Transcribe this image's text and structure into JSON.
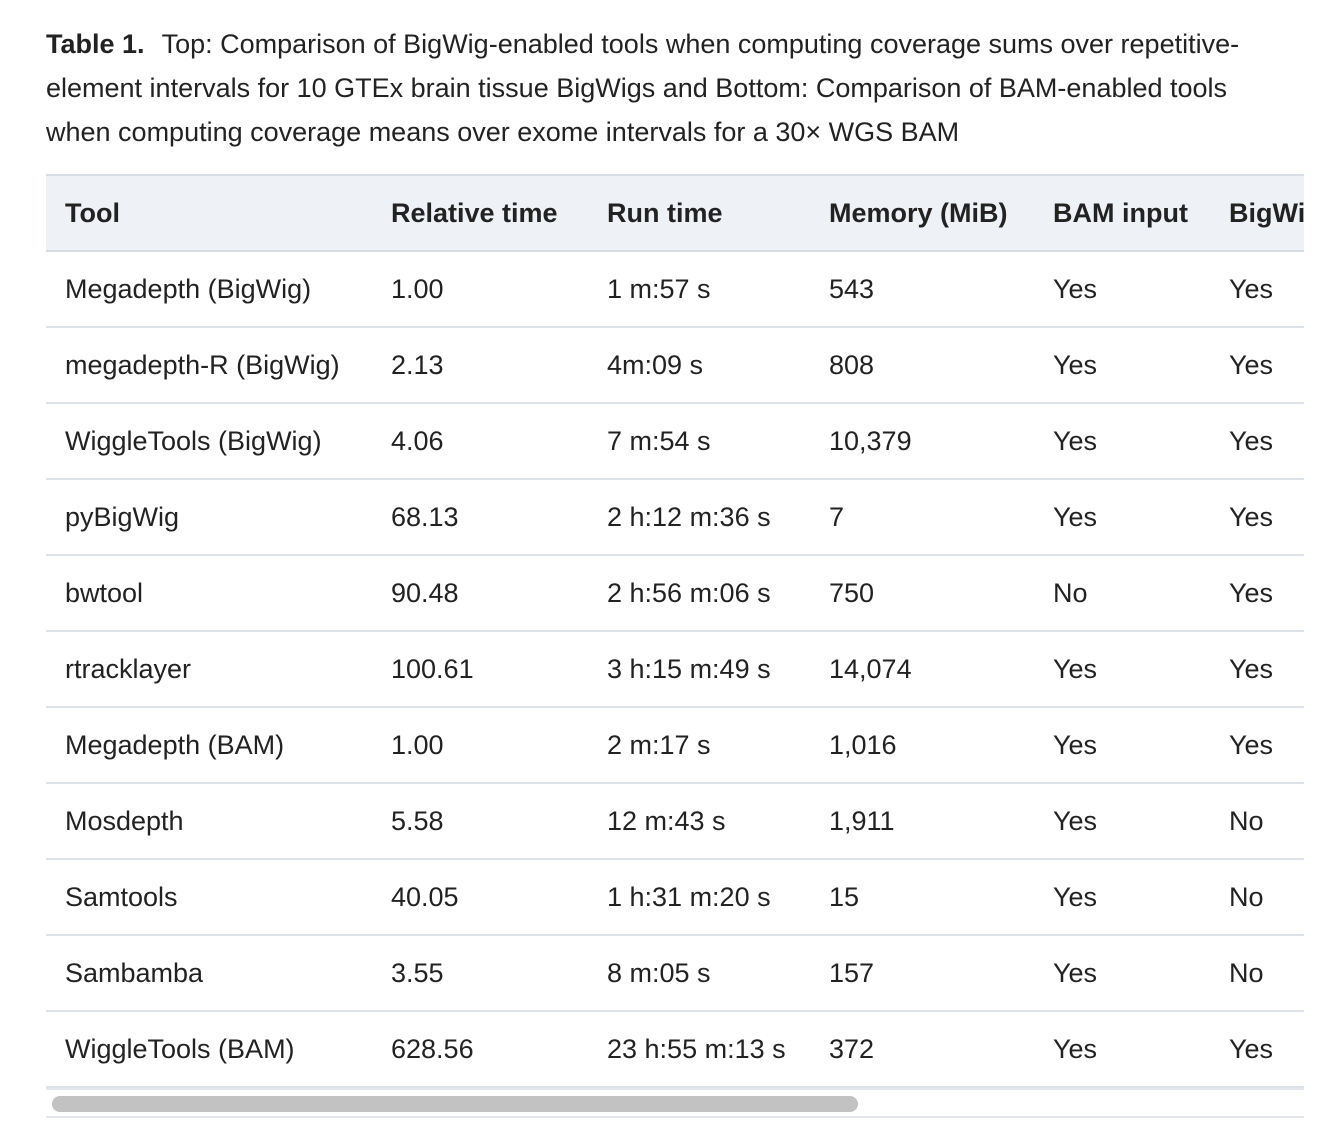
{
  "caption": {
    "label": "Table 1.",
    "text": "Top: Comparison of BigWig-enabled tools when computing coverage sums over repetitive-element intervals for 10 GTEx brain tissue BigWigs and Bottom: Comparison of BAM-enabled tools when computing coverage means over exome intervals for a 30× WGS BAM"
  },
  "table": {
    "headers": [
      "Tool",
      "Relative time",
      "Run time",
      "Memory (MiB)",
      "BAM input",
      "BigWi"
    ],
    "rows": [
      [
        "Megadepth (BigWig)",
        "1.00",
        "1 m:57 s",
        "543",
        "Yes",
        "Yes"
      ],
      [
        "megadepth-R (BigWig)",
        "2.13",
        "4m:09 s",
        "808",
        "Yes",
        "Yes"
      ],
      [
        "WiggleTools (BigWig)",
        "4.06",
        "7 m:54 s",
        "10,379",
        "Yes",
        "Yes"
      ],
      [
        "pyBigWig",
        "68.13",
        "2 h:12 m:36 s",
        "7",
        "Yes",
        "Yes"
      ],
      [
        "bwtool",
        "90.48",
        "2 h:56 m:06 s",
        "750",
        "No",
        "Yes"
      ],
      [
        "rtracklayer",
        "100.61",
        "3 h:15 m:49 s",
        "14,074",
        "Yes",
        "Yes"
      ],
      [
        "Megadepth (BAM)",
        "1.00",
        "2 m:17 s",
        "1,016",
        "Yes",
        "Yes"
      ],
      [
        "Mosdepth",
        "5.58",
        "12 m:43 s",
        "1,911",
        "Yes",
        "No"
      ],
      [
        "Samtools",
        "40.05",
        "1 h:31 m:20 s",
        "15",
        "Yes",
        "No"
      ],
      [
        "Sambamba",
        "3.55",
        "8 m:05 s",
        "157",
        "Yes",
        "No"
      ],
      [
        "WiggleTools (BAM)",
        "628.56",
        "23 h:55 m:13 s",
        "372",
        "Yes",
        "Yes"
      ]
    ]
  },
  "scrollbar": {
    "position": 0
  }
}
